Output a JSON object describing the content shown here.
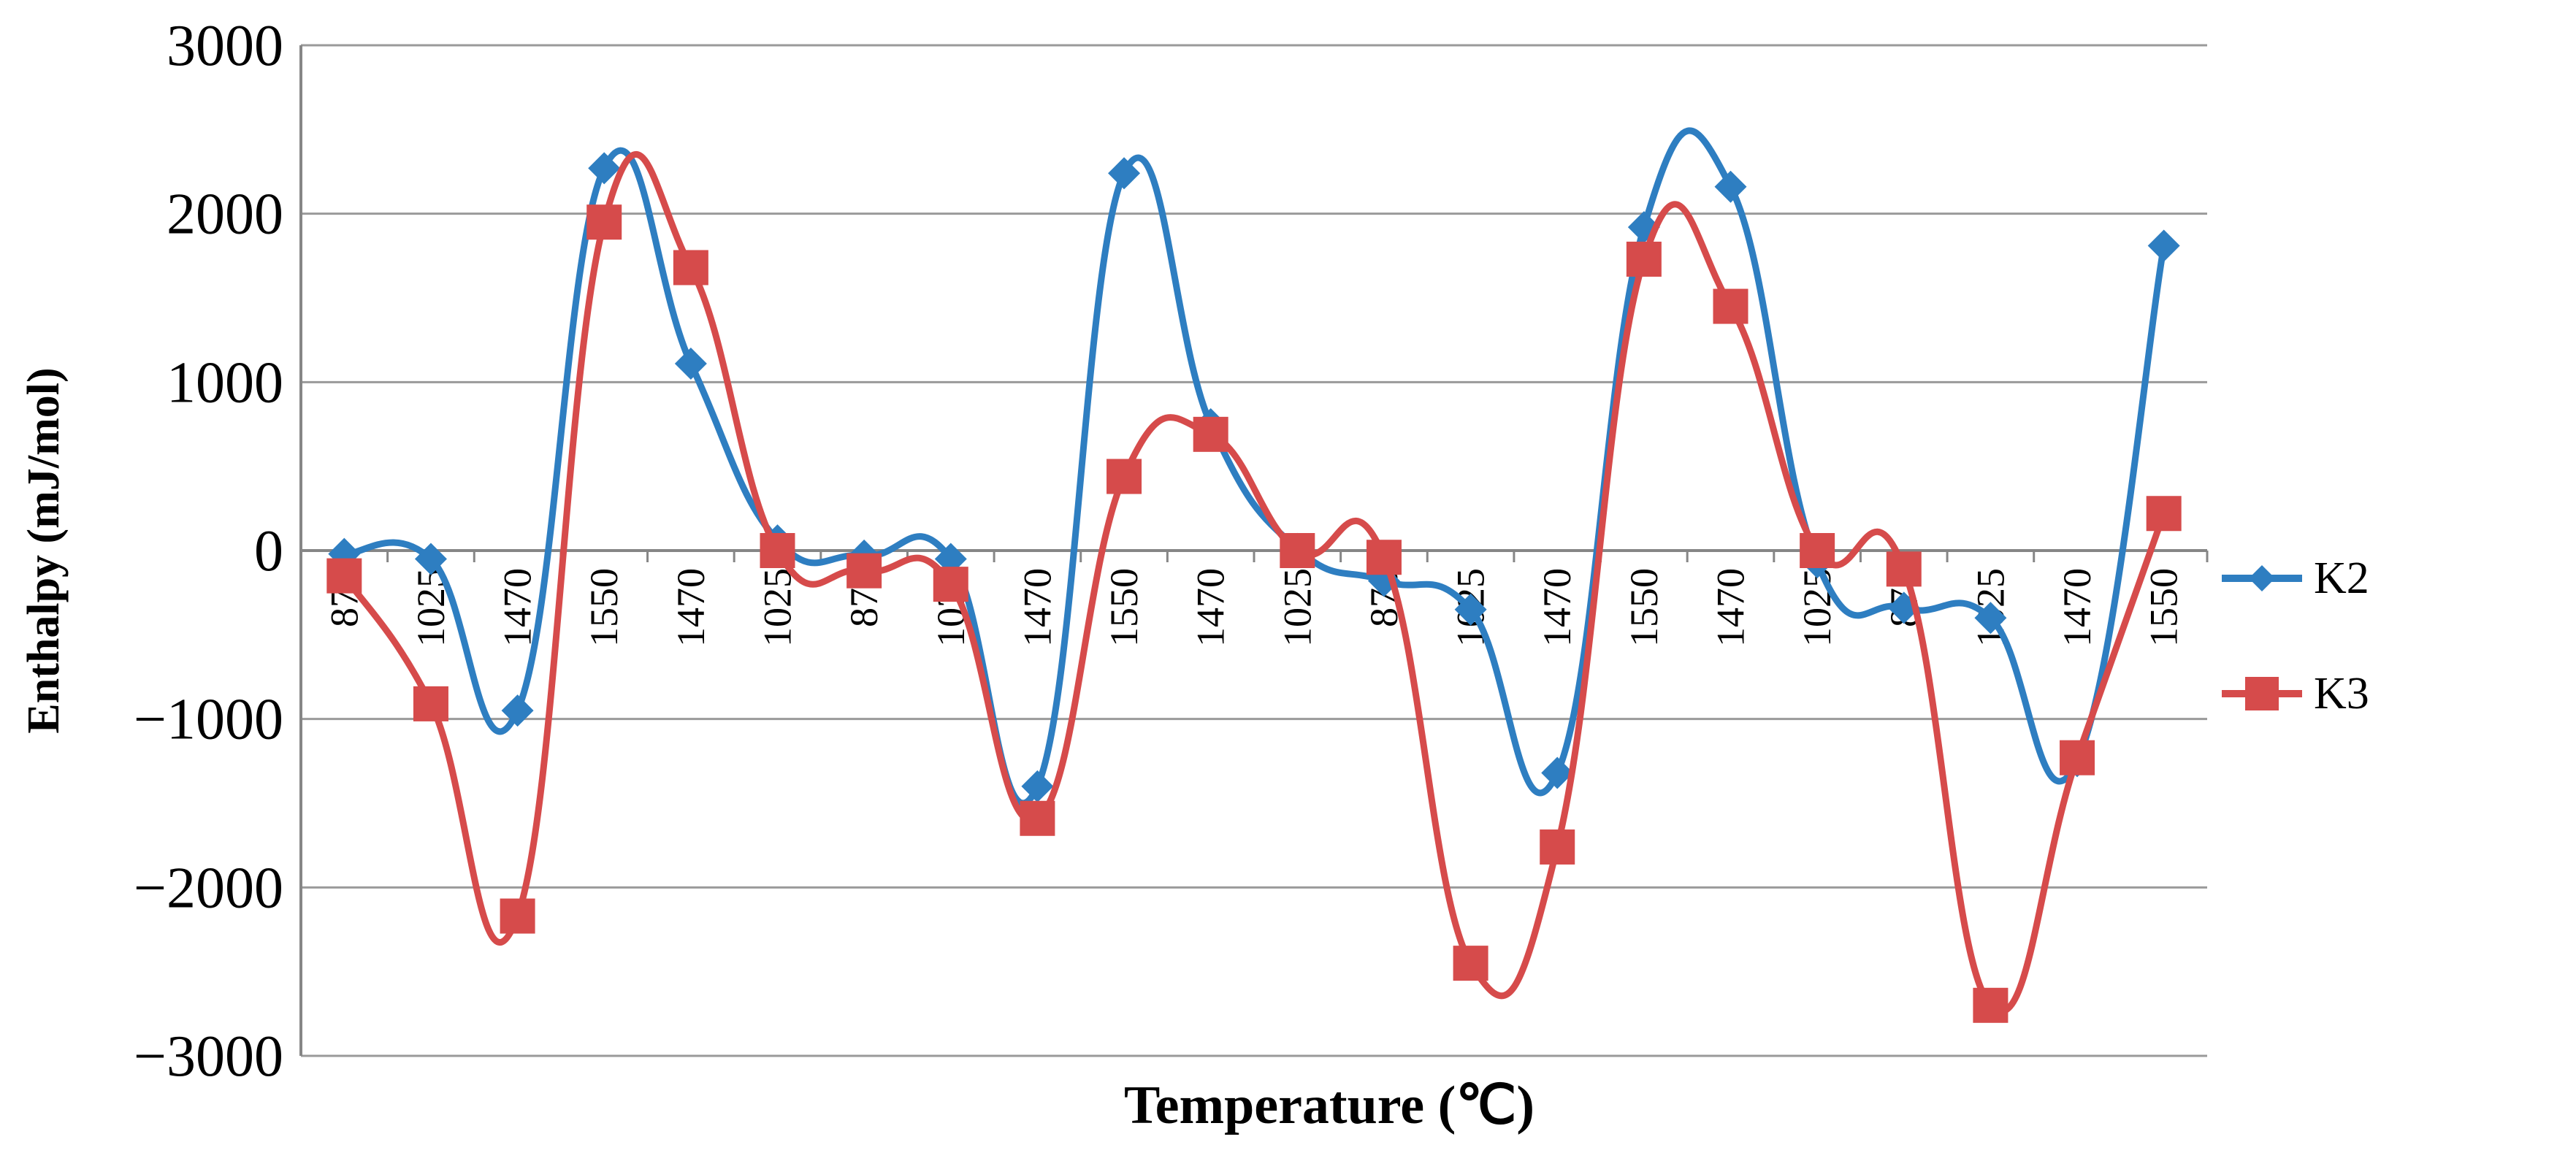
{
  "chart_data": {
    "type": "line",
    "title": "",
    "xlabel": "Temperature (℃)",
    "ylabel": "Enthalpy (mJ/mol)",
    "ylim": [
      -3000,
      3000
    ],
    "yticks": [
      3000,
      2000,
      1000,
      0,
      -1000,
      -2000,
      -3000
    ],
    "ytick_labels": [
      "3000",
      "2000",
      "1000",
      "0",
      "−1000",
      "−2000",
      "−3000"
    ],
    "grid": true,
    "smooth": true,
    "legend_position": "right",
    "categories": [
      "870",
      "1025",
      "1470",
      "1550",
      "1470",
      "1025",
      "870",
      "1025",
      "1470",
      "1550",
      "1470",
      "1025",
      "870",
      "1025",
      "1470",
      "1550",
      "1470",
      "1025",
      "870",
      "1025",
      "1470",
      "1550"
    ],
    "series": [
      {
        "name": "K2",
        "color": "#2E7EC1",
        "marker": "diamond",
        "values": [
          -20,
          -50,
          -950,
          2270,
          1110,
          60,
          -30,
          -50,
          -1400,
          2240,
          750,
          10,
          -180,
          -350,
          -1320,
          1920,
          2160,
          -70,
          -340,
          -400,
          -1250,
          1810
        ]
      },
      {
        "name": "K3",
        "color": "#D64B4B",
        "marker": "square",
        "values": [
          -150,
          -910,
          -2170,
          1950,
          1680,
          0,
          -120,
          -200,
          -1590,
          440,
          690,
          0,
          -40,
          -2450,
          -1760,
          1730,
          1450,
          0,
          -110,
          -2700,
          -1230,
          220
        ]
      }
    ]
  }
}
